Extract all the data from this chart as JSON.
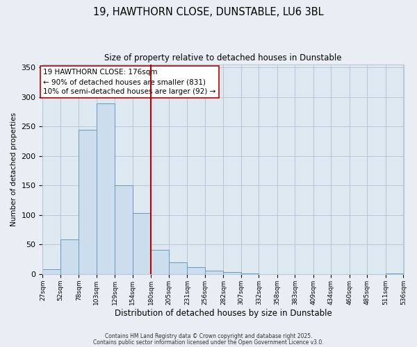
{
  "title": "19, HAWTHORN CLOSE, DUNSTABLE, LU6 3BL",
  "subtitle": "Size of property relative to detached houses in Dunstable",
  "xlabel": "Distribution of detached houses by size in Dunstable",
  "ylabel": "Number of detached properties",
  "bar_edges": [
    27,
    52,
    78,
    103,
    129,
    154,
    180,
    205,
    231,
    256,
    282,
    307,
    332,
    358,
    383,
    409,
    434,
    460,
    485,
    511,
    536
  ],
  "bar_heights": [
    8,
    59,
    245,
    289,
    150,
    103,
    41,
    20,
    12,
    6,
    3,
    1,
    0,
    0,
    0,
    0,
    0,
    0,
    0,
    1
  ],
  "bar_color": "#ccdded",
  "bar_edge_color": "#6699bb",
  "vline_x": 180,
  "vline_color": "#bb0000",
  "annotation_lines": [
    "19 HAWTHORN CLOSE: 176sqm",
    "← 90% of detached houses are smaller (831)",
    "10% of semi-detached houses are larger (92) →"
  ],
  "annotation_box_color": "#bb0000",
  "ylim": [
    0,
    355
  ],
  "tick_labels": [
    "27sqm",
    "52sqm",
    "78sqm",
    "103sqm",
    "129sqm",
    "154sqm",
    "180sqm",
    "205sqm",
    "231sqm",
    "256sqm",
    "282sqm",
    "307sqm",
    "332sqm",
    "358sqm",
    "383sqm",
    "409sqm",
    "434sqm",
    "460sqm",
    "485sqm",
    "511sqm",
    "536sqm"
  ],
  "footer1": "Contains HM Land Registry data © Crown copyright and database right 2025.",
  "footer2": "Contains public sector information licensed under the Open Government Licence v3.0.",
  "bg_color": "#e8eef4",
  "plot_bg_color": "#dde8f0",
  "grid_color": "#b8c8d8",
  "title_fontsize": 10.5,
  "subtitle_fontsize": 8.5,
  "ylabel_fontsize": 7.5,
  "xlabel_fontsize": 8.5,
  "ytick_fontsize": 8,
  "xtick_fontsize": 6.5,
  "annotation_fontsize": 7.5,
  "footer_fontsize": 5.5
}
